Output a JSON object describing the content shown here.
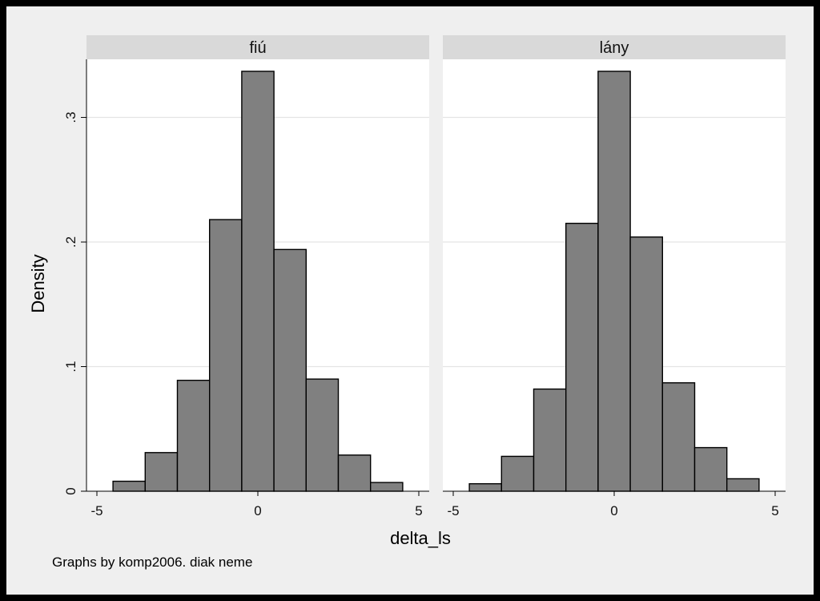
{
  "chart_data": {
    "type": "bar",
    "subtype": "histogram-by-group",
    "xlabel": "delta_ls",
    "ylabel": "Density",
    "note": "Graphs by komp2006. diak neme",
    "xlim": [
      -5.5,
      5.5
    ],
    "ylim": [
      0,
      0.337
    ],
    "xticks": [
      -5,
      0,
      5
    ],
    "xtick_labels": [
      "-5",
      "0",
      "5"
    ],
    "yticks": [
      0,
      0.1,
      0.2,
      0.3
    ],
    "ytick_labels": [
      "0",
      ".1",
      ".2",
      ".3"
    ],
    "grid": true,
    "bin_width": 1,
    "bin_centers": [
      -4,
      -3,
      -2,
      -1,
      0,
      1,
      2,
      3,
      4
    ],
    "panels": [
      {
        "title": "fiú",
        "values": [
          0.008,
          0.031,
          0.089,
          0.218,
          0.337,
          0.194,
          0.09,
          0.029,
          0.007
        ]
      },
      {
        "title": "lány",
        "values": [
          0.006,
          0.028,
          0.082,
          0.215,
          0.337,
          0.204,
          0.087,
          0.035,
          0.01
        ]
      }
    ]
  },
  "colors": {
    "bar_fill": "#808080",
    "bar_outline": "#000000",
    "strip": "#d9d9d9",
    "outer_background": "#efefef"
  }
}
